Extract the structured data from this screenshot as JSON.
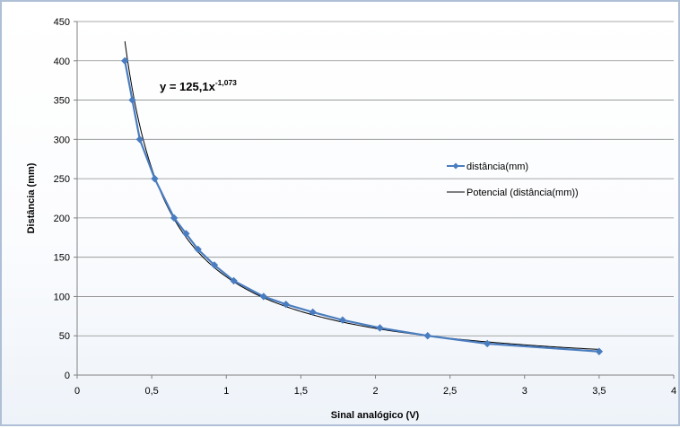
{
  "chart_data": {
    "type": "scatter",
    "title": "",
    "xlabel": "Sinal analógico (V)",
    "ylabel": "Distância (mm)",
    "xlim": [
      0,
      4
    ],
    "ylim": [
      0,
      450
    ],
    "x_ticks": [
      0,
      0.5,
      1,
      1.5,
      2,
      2.5,
      3,
      3.5,
      4
    ],
    "x_tick_labels": [
      "0",
      "0,5",
      "1",
      "1,5",
      "2",
      "2,5",
      "3",
      "3,5",
      "4"
    ],
    "y_ticks": [
      0,
      50,
      100,
      150,
      200,
      250,
      300,
      350,
      400,
      450
    ],
    "y_tick_labels": [
      "0",
      "50",
      "100",
      "150",
      "200",
      "250",
      "300",
      "350",
      "400",
      "450"
    ],
    "grid": "horizontal",
    "legend_position": "right",
    "series": [
      {
        "name": "distância(mm)",
        "color": "#4a7dbf",
        "marker": "diamond",
        "x": [
          0.32,
          0.37,
          0.42,
          0.52,
          0.65,
          0.73,
          0.81,
          0.92,
          1.05,
          1.25,
          1.4,
          1.58,
          1.78,
          2.03,
          2.35,
          2.75,
          3.5
        ],
        "y": [
          400,
          350,
          300,
          250,
          200,
          180,
          160,
          140,
          120,
          100,
          90,
          80,
          70,
          60,
          50,
          40,
          30
        ]
      }
    ],
    "trendline": {
      "name": "Potencial (distância(mm))",
      "type": "power",
      "coefficient": 125.1,
      "exponent": -1.073,
      "x_range": [
        0.32,
        3.5
      ],
      "color": "#000000",
      "equation_prefix": "y = 125,1x",
      "equation_exponent": "-1,073"
    }
  }
}
